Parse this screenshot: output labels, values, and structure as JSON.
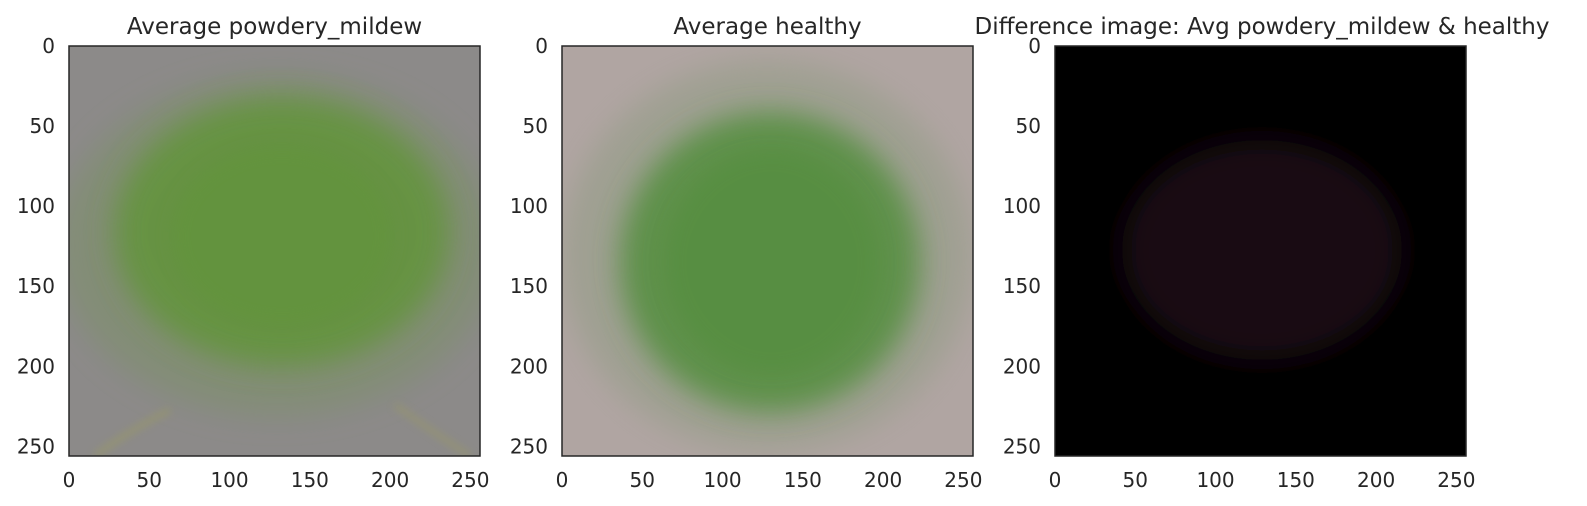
{
  "chart_data": [
    {
      "type": "image",
      "title": "Average powdery_mildew",
      "xlim": [
        0,
        256
      ],
      "ylim": [
        256,
        0
      ],
      "xticks": [
        0,
        50,
        100,
        150,
        200,
        250
      ],
      "yticks": [
        0,
        50,
        100,
        150,
        200,
        250
      ],
      "grid": false,
      "colors": {
        "background": "#8c8a89",
        "leaf": "#62943a",
        "leaf_edge": "#7c9068",
        "stem": "#9a9a64"
      }
    },
    {
      "type": "image",
      "title": "Average healthy",
      "xlim": [
        0,
        256
      ],
      "ylim": [
        256,
        0
      ],
      "xticks": [
        0,
        50,
        100,
        150,
        200,
        250
      ],
      "yticks": [
        0,
        50,
        100,
        150,
        200,
        250
      ],
      "grid": false,
      "colors": {
        "background": "#b0a5a2",
        "leaf": "#538e3e",
        "leaf_edge": "#8a9a7e"
      }
    },
    {
      "type": "image",
      "title": "Difference image: Avg powdery_mildew & healthy",
      "xlim": [
        0,
        256
      ],
      "ylim": [
        256,
        0
      ],
      "xticks": [
        0,
        50,
        100,
        150,
        200,
        250
      ],
      "yticks": [
        0,
        50,
        100,
        150,
        200,
        250
      ],
      "grid": false,
      "colors": {
        "background": "#000000",
        "leaf": "#1a0d16"
      }
    }
  ]
}
